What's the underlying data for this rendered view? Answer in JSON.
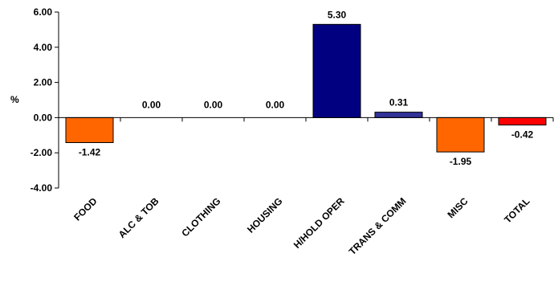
{
  "chart_data": {
    "type": "bar",
    "title": "",
    "xlabel": "",
    "ylabel": "%",
    "ylim": [
      -4,
      6
    ],
    "yticks": [
      6,
      4,
      2,
      0,
      -2,
      -4
    ],
    "ytick_labels": [
      "6.00",
      "4.00",
      "2.00",
      "0.00",
      "-2.00",
      "-4.00"
    ],
    "grid": false,
    "legend": "none",
    "categories": [
      "FOOD",
      "ALC & TOB",
      "CLOTHING",
      "HOUSING",
      "H/HOLD OPER",
      "TRANS & COMM",
      "MISC",
      "TOTAL"
    ],
    "values": [
      -1.42,
      0.0,
      0.0,
      0.0,
      5.3,
      0.31,
      -1.95,
      -0.42
    ],
    "value_labels": [
      "-1.42",
      "0.00",
      "0.00",
      "0.00",
      "5.30",
      "0.31",
      "-1.95",
      "-0.42"
    ],
    "bar_colors": [
      "#ff6600",
      "#ff6600",
      "#ff6600",
      "#ff6600",
      "#000080",
      "#333399",
      "#ff6600",
      "#ff0000"
    ]
  }
}
